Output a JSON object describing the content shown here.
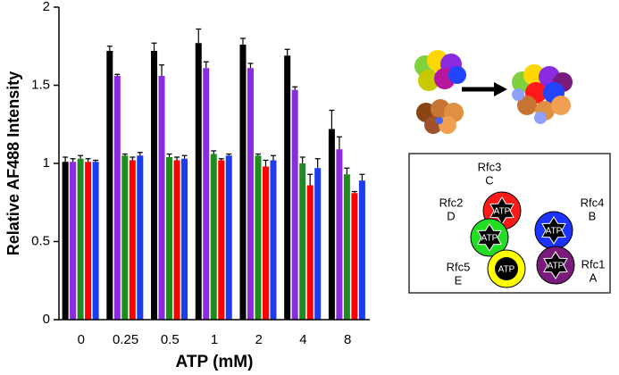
{
  "chart_data": {
    "type": "bar",
    "ylabel": "Relative AF488 Intensity",
    "xlabel": "ATP (mM)",
    "categories": [
      "0",
      "0.25",
      "0.5",
      "1",
      "2",
      "4",
      "8"
    ],
    "series": [
      {
        "color": "#000000",
        "values": [
          1.01,
          1.72,
          1.72,
          1.77,
          1.76,
          1.69,
          1.22
        ],
        "errors": [
          0.03,
          0.03,
          0.05,
          0.09,
          0.04,
          0.04,
          0.12
        ]
      },
      {
        "color": "#8a2be2",
        "values": [
          1.01,
          1.56,
          1.56,
          1.61,
          1.61,
          1.47,
          1.09
        ],
        "errors": [
          0.02,
          0.01,
          0.07,
          0.04,
          0.03,
          0.02,
          0.08
        ]
      },
      {
        "color": "#1e8c1e",
        "values": [
          1.03,
          1.05,
          1.04,
          1.06,
          1.05,
          1.0,
          0.93
        ],
        "errors": [
          0.02,
          0.01,
          0.02,
          0.02,
          0.01,
          0.04,
          0.04
        ]
      },
      {
        "color": "#ff0000",
        "values": [
          1.01,
          1.02,
          1.02,
          1.02,
          0.98,
          0.86,
          0.81
        ],
        "errors": [
          0.02,
          0.02,
          0.02,
          0.01,
          0.04,
          0.07,
          0.01
        ]
      },
      {
        "color": "#1c3cf0",
        "values": [
          1.01,
          1.05,
          1.03,
          1.05,
          1.02,
          0.97,
          0.89
        ],
        "errors": [
          0.01,
          0.02,
          0.02,
          0.01,
          0.03,
          0.06,
          0.04
        ]
      }
    ],
    "ylim": [
      0,
      2
    ],
    "yticks": [
      0,
      0.5,
      1,
      1.5,
      2
    ]
  },
  "diagram": {
    "nodes": [
      {
        "name": "Rfc3",
        "letter": "C",
        "atp": "ATP",
        "color": "#ff1a1a"
      },
      {
        "name": "Rfc4",
        "letter": "B",
        "atp": "ATP",
        "color": "#1a33ff"
      },
      {
        "name": "Rfc2",
        "letter": "D",
        "atp": "ATP",
        "color": "#22dd22"
      },
      {
        "name": "Rfc5",
        "letter": "E",
        "atp": "ATP",
        "color": "#ffff00"
      },
      {
        "name": "Rfc1",
        "letter": "A",
        "atp": "ATP",
        "color": "#7a1a7a"
      }
    ]
  }
}
